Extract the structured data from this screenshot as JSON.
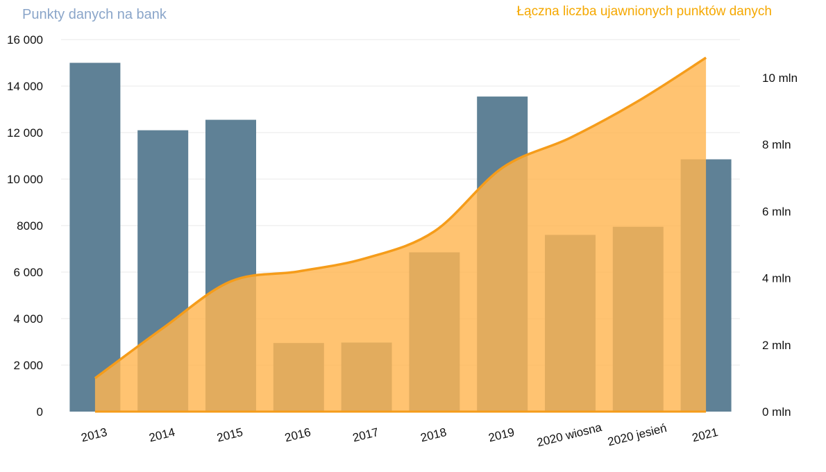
{
  "chart_data": {
    "type": "bar",
    "title_left": "Punkty danych na bank",
    "title_right": "Łączna liczba ujawnionych punktów danych",
    "categories": [
      "2013",
      "2014",
      "2015",
      "2016",
      "2017",
      "2018",
      "2019",
      "2020 wiosna",
      "2020 jesień",
      "2021"
    ],
    "series": [
      {
        "name": "Punkty danych na bank",
        "type": "bar",
        "axis": "left",
        "color": "#5f8196",
        "values": [
          15000,
          12100,
          12550,
          2950,
          2970,
          6850,
          13550,
          7600,
          7950,
          10850
        ]
      },
      {
        "name": "Łączna liczba ujawnionych punktów danych",
        "type": "area",
        "axis": "right",
        "color": "#f59c1a",
        "fill": "#ffb652",
        "values": [
          1.0,
          2.5,
          3.9,
          4.2,
          4.6,
          5.4,
          7.3,
          8.2,
          9.3,
          10.6
        ]
      }
    ],
    "y_left": {
      "ylim": [
        0,
        16000
      ],
      "ticks": [
        0,
        2000,
        4000,
        6000,
        8000,
        10000,
        12000,
        14000,
        16000
      ],
      "tick_labels": [
        "0",
        "2 000",
        "4 000",
        "6 000",
        "8000",
        "10 000",
        "12 000",
        "14 000",
        "16 000"
      ]
    },
    "y_right": {
      "ylim": [
        0,
        11
      ],
      "ticks": [
        0,
        2,
        4,
        6,
        8,
        10
      ],
      "tick_labels": [
        "0 mln",
        "2 mln",
        "4 mln",
        "6 mln",
        "8 mln",
        "10 mln"
      ]
    },
    "grid": true
  }
}
